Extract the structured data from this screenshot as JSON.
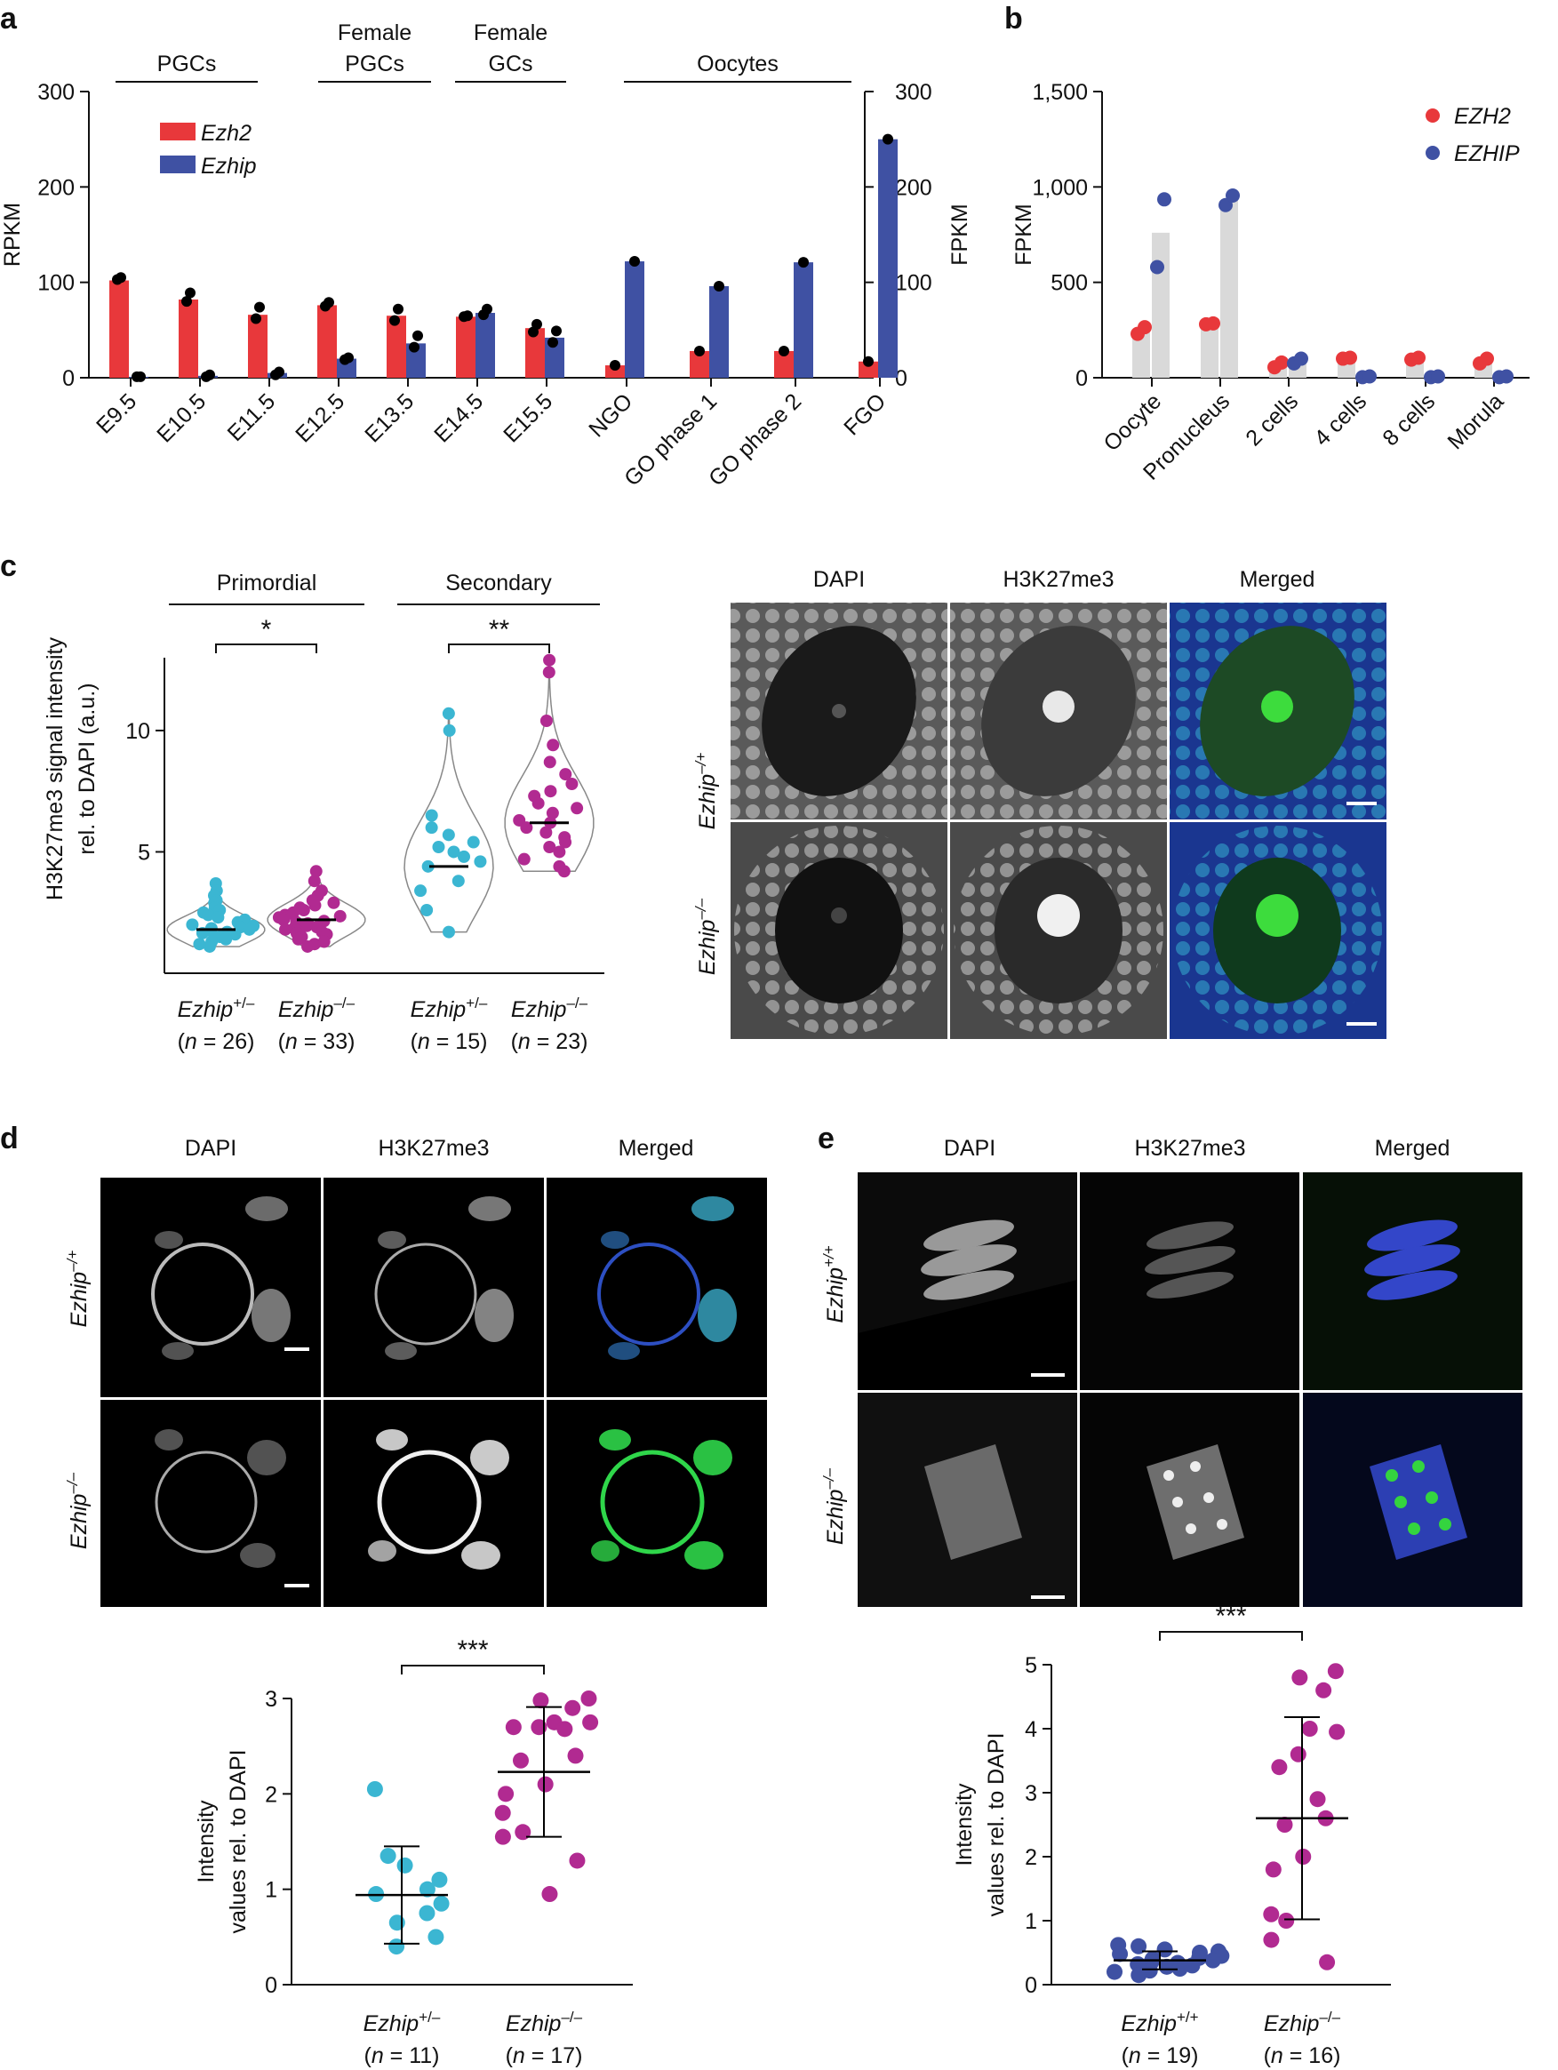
{
  "colors": {
    "ezh2": "#e8383b",
    "ezhip": "#3f51a3",
    "hetero": "#3bb6d2",
    "ko": "#b12a91",
    "gray_bar": "#d9d9d9",
    "violet_outline": "#888888"
  },
  "panels": {
    "a": "a",
    "b": "b",
    "c": "c",
    "d": "d",
    "e": "e"
  },
  "chart_data": [
    {
      "id": "a-left",
      "type": "bar",
      "ylabel": "RPKM",
      "ylim": [
        0,
        300
      ],
      "yticks": [
        "0",
        "100",
        "200",
        "300"
      ],
      "categories": [
        "E9.5",
        "E10.5",
        "E11.5",
        "E12.5",
        "E13.5",
        "E14.5",
        "E15.5"
      ],
      "groups": [
        {
          "label": "PGCs",
          "span": [
            0,
            2
          ]
        },
        {
          "label_lines": [
            "Female",
            "PGCs"
          ],
          "span": [
            3,
            4
          ]
        },
        {
          "label_lines": [
            "Female",
            "GCs"
          ],
          "span": [
            5,
            6
          ]
        }
      ],
      "legend": [
        "Ezh2",
        "Ezhip"
      ],
      "series": [
        {
          "name": "Ezh2",
          "values": [
            102,
            82,
            66,
            76,
            65,
            64,
            52
          ],
          "points": [
            [
              103,
              105
            ],
            [
              80,
              89
            ],
            [
              62,
              74
            ],
            [
              75,
              79
            ],
            [
              60,
              72
            ],
            [
              64,
              65
            ],
            [
              48,
              56
            ]
          ]
        },
        {
          "name": "Ezhip",
          "values": [
            1,
            2,
            5,
            20,
            36,
            68,
            42
          ],
          "points": [
            [
              1,
              1
            ],
            [
              1,
              3
            ],
            [
              3,
              6
            ],
            [
              19,
              21
            ],
            [
              32,
              44
            ],
            [
              66,
              72
            ],
            [
              37,
              49
            ]
          ]
        }
      ]
    },
    {
      "id": "a-right",
      "type": "bar",
      "ylabel": "FPKM",
      "ylim": [
        0,
        300
      ],
      "yticks": [
        "0",
        "100",
        "200",
        "300"
      ],
      "categories": [
        "NGO",
        "GO phase 1",
        "GO phase 2",
        "FGO"
      ],
      "groups": [
        {
          "label": "Oocytes",
          "span": [
            0,
            3
          ]
        }
      ],
      "series": [
        {
          "name": "Ezh2",
          "values": [
            13,
            28,
            28,
            17
          ]
        },
        {
          "name": "Ezhip",
          "values": [
            122,
            96,
            121,
            250
          ]
        }
      ]
    },
    {
      "id": "b",
      "type": "bar",
      "ylabel": "FPKM",
      "ylim": [
        0,
        1500
      ],
      "yticks": [
        "0",
        "500",
        "1,000",
        "1,500"
      ],
      "categories": [
        "Oocyte",
        "Pronucleus",
        "2 cells",
        "4 cells",
        "8 cells",
        "Morula"
      ],
      "legend": [
        "EZH2",
        "EZHIP"
      ],
      "series": [
        {
          "name": "EZH2",
          "means": [
            250,
            285,
            70,
            105,
            100,
            90
          ],
          "points": [
            [
              230,
              265
            ],
            [
              280,
              285
            ],
            [
              55,
              80
            ],
            [
              100,
              105
            ],
            [
              95,
              105
            ],
            [
              75,
              100
            ]
          ]
        },
        {
          "name": "EZHIP",
          "means": [
            760,
            930,
            90,
            5,
            5,
            5
          ],
          "points": [
            [
              580,
              935
            ],
            [
              905,
              955
            ],
            [
              75,
              100
            ],
            [
              3,
              7
            ],
            [
              3,
              7
            ],
            [
              3,
              7
            ]
          ]
        }
      ]
    },
    {
      "id": "c",
      "type": "scatter",
      "ylabel_lines": [
        "H3K27me3 signal intensity",
        "rel. to DAPI (a.u.)"
      ],
      "ylim": [
        0,
        13
      ],
      "yticks": [
        5,
        10
      ],
      "groups": [
        {
          "label": "Primordial",
          "sig": "*"
        },
        {
          "label": "Secondary",
          "sig": "**"
        }
      ],
      "categories": [
        {
          "gene": "Ezhip",
          "sup": "+/–",
          "n": "(n = 26)"
        },
        {
          "gene": "Ezhip",
          "sup": "–/–",
          "n": "(n = 33)"
        },
        {
          "gene": "Ezhip",
          "sup": "+/–",
          "n": "(n = 15)"
        },
        {
          "gene": "Ezhip",
          "sup": "–/–",
          "n": "(n = 23)"
        }
      ],
      "medians": [
        1.8,
        2.2,
        4.4,
        6.2
      ],
      "series": [
        {
          "values": [
            3.7,
            3.4,
            3.2,
            3.0,
            2.9,
            2.7,
            2.6,
            2.5,
            2.4,
            2.3,
            2.2,
            2.1,
            2.0,
            1.95,
            1.9,
            1.85,
            1.8,
            1.75,
            1.7,
            1.65,
            1.6,
            1.5,
            1.4,
            1.3,
            1.2,
            1.1
          ]
        },
        {
          "values": [
            4.2,
            3.8,
            3.4,
            3.2,
            3.0,
            2.9,
            2.8,
            2.7,
            2.6,
            2.5,
            2.45,
            2.4,
            2.35,
            2.3,
            2.25,
            2.2,
            2.15,
            2.1,
            2.05,
            2.0,
            1.95,
            1.9,
            1.85,
            1.8,
            1.75,
            1.7,
            1.65,
            1.6,
            1.5,
            1.4,
            1.3,
            1.2,
            1.1
          ]
        },
        {
          "values": [
            10.7,
            10.0,
            6.5,
            6.0,
            5.7,
            5.4,
            5.2,
            5.0,
            4.8,
            4.6,
            4.4,
            3.8,
            3.4,
            2.6,
            1.7
          ]
        },
        {
          "values": [
            12.9,
            12.4,
            10.4,
            9.4,
            8.7,
            8.2,
            7.8,
            7.5,
            7.3,
            7.0,
            6.8,
            6.6,
            6.3,
            6.2,
            6.0,
            5.8,
            5.6,
            5.4,
            5.2,
            5.0,
            4.7,
            4.4,
            4.2
          ]
        }
      ]
    },
    {
      "id": "d-plot",
      "type": "scatter",
      "ylabel_lines": [
        "Intensity",
        "values rel. to DAPI"
      ],
      "ylim": [
        0,
        3
      ],
      "yticks": [
        "0",
        "1",
        "2",
        "3"
      ],
      "sig": "***",
      "categories": [
        {
          "gene": "Ezhip",
          "sup": "+/–",
          "n": "(n = 11)"
        },
        {
          "gene": "Ezhip",
          "sup": "–/–",
          "n": "(n = 17)"
        }
      ],
      "mean": [
        0.94,
        2.23
      ],
      "sd": [
        0.51,
        0.68
      ],
      "series": [
        {
          "values": [
            2.05,
            1.35,
            1.25,
            1.1,
            1.0,
            0.95,
            0.85,
            0.75,
            0.65,
            0.5,
            0.4
          ]
        },
        {
          "values": [
            3.0,
            2.98,
            2.9,
            2.75,
            2.75,
            2.7,
            2.7,
            2.68,
            2.4,
            2.35,
            2.1,
            2.0,
            1.8,
            1.6,
            1.55,
            1.3,
            0.95
          ]
        }
      ]
    },
    {
      "id": "e-plot",
      "type": "scatter",
      "ylabel_lines": [
        "Intensity",
        "values rel. to DAPI"
      ],
      "ylim": [
        0,
        5
      ],
      "yticks": [
        "0",
        "1",
        "2",
        "3",
        "4",
        "5"
      ],
      "sig": "***",
      "categories": [
        {
          "gene": "Ezhip",
          "sup": "+/+",
          "n": "(n = 19)"
        },
        {
          "gene": "Ezhip",
          "sup": "–/–",
          "n": "(n = 16)"
        }
      ],
      "mean": [
        0.38,
        2.6
      ],
      "sd": [
        0.14,
        1.58
      ],
      "series": [
        {
          "values": [
            0.62,
            0.6,
            0.55,
            0.52,
            0.5,
            0.48,
            0.45,
            0.42,
            0.4,
            0.38,
            0.36,
            0.34,
            0.32,
            0.3,
            0.28,
            0.25,
            0.22,
            0.2,
            0.15
          ]
        },
        {
          "values": [
            4.9,
            4.8,
            4.6,
            4.0,
            3.95,
            3.6,
            3.4,
            2.9,
            2.6,
            2.5,
            2.0,
            1.8,
            1.1,
            1.0,
            0.7,
            0.35
          ]
        }
      ]
    }
  ],
  "images": {
    "c": {
      "columns": [
        "DAPI",
        "H3K27me3",
        "Merged"
      ],
      "rows": [
        {
          "gene": "Ezhip",
          "sup": "–/+"
        },
        {
          "gene": "Ezhip",
          "sup": "–/–"
        }
      ]
    },
    "d": {
      "columns": [
        "DAPI",
        "H3K27me3",
        "Merged"
      ],
      "rows": [
        {
          "gene": "Ezhip",
          "sup": "–/+"
        },
        {
          "gene": "Ezhip",
          "sup": "–/–"
        }
      ]
    },
    "e": {
      "columns": [
        "DAPI",
        "H3K27me3",
        "Merged"
      ],
      "rows": [
        {
          "gene": "Ezhip",
          "sup": "+/+"
        },
        {
          "gene": "Ezhip",
          "sup": "–/–"
        }
      ]
    }
  }
}
